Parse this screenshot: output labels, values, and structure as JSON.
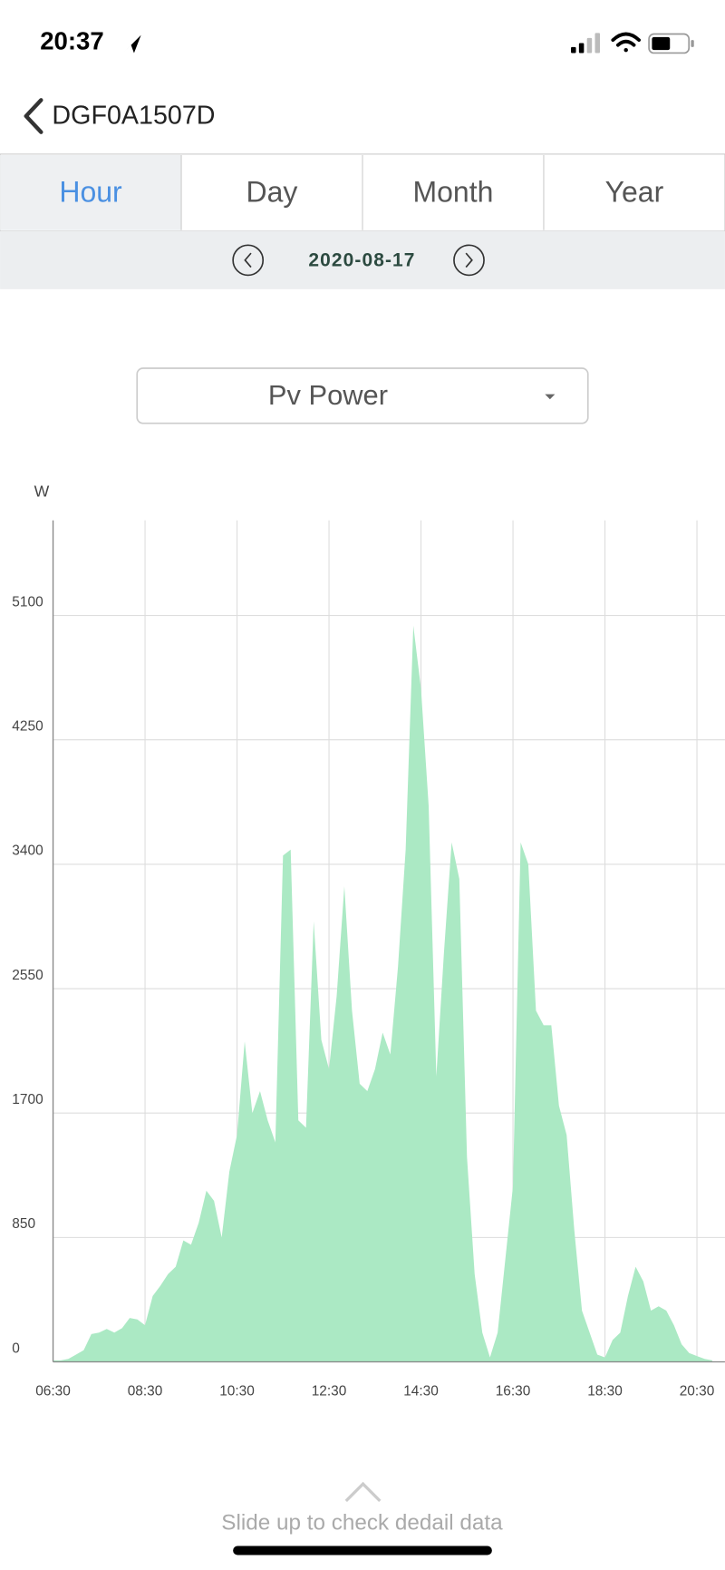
{
  "status_bar": {
    "time": "20:37"
  },
  "header": {
    "title": "DGF0A1507D"
  },
  "tabs": [
    "Hour",
    "Day",
    "Month",
    "Year"
  ],
  "date": "2020-08-17",
  "dropdown": "Pv Power",
  "footer": "Slide up to check dedail data",
  "chart_data": {
    "type": "area",
    "y_label": "W",
    "color": "#abe9c4",
    "x": [
      "06:30",
      "06:40",
      "06:50",
      "07:00",
      "07:10",
      "07:20",
      "07:30",
      "07:40",
      "07:50",
      "08:00",
      "08:10",
      "08:20",
      "08:30",
      "08:40",
      "08:50",
      "09:00",
      "09:10",
      "09:20",
      "09:30",
      "09:40",
      "09:50",
      "10:00",
      "10:10",
      "10:20",
      "10:30",
      "10:40",
      "10:50",
      "11:00",
      "11:10",
      "11:20",
      "11:30",
      "11:40",
      "11:50",
      "12:00",
      "12:10",
      "12:20",
      "12:30",
      "12:40",
      "12:50",
      "13:00",
      "13:10",
      "13:20",
      "13:30",
      "13:40",
      "13:50",
      "14:00",
      "14:10",
      "14:20",
      "14:30",
      "14:40",
      "14:50",
      "15:00",
      "15:10",
      "15:20",
      "15:30",
      "15:40",
      "15:50",
      "16:00",
      "16:10",
      "16:20",
      "16:30",
      "16:40",
      "16:50",
      "17:00",
      "17:10",
      "17:20",
      "17:30",
      "17:40",
      "17:50",
      "18:00",
      "18:10",
      "18:20",
      "18:30",
      "18:40",
      "18:50",
      "19:00",
      "19:10",
      "19:20",
      "19:30",
      "19:40",
      "19:50",
      "20:00",
      "20:10",
      "20:20",
      "20:30",
      "20:40",
      "20:50"
    ],
    "series": [
      {
        "name": "Pv Power",
        "color": "#abe9c4",
        "values": [
          10,
          10,
          20,
          50,
          80,
          190,
          200,
          225,
          200,
          230,
          300,
          290,
          250,
          450,
          520,
          600,
          650,
          830,
          800,
          950,
          1170,
          1100,
          850,
          1300,
          1550,
          2190,
          1700,
          1850,
          1650,
          1500,
          3460,
          3500,
          1650,
          1600,
          3010,
          2200,
          2000,
          2500,
          3250,
          2400,
          1900,
          1850,
          2000,
          2250,
          2100,
          2700,
          3500,
          5030,
          4600,
          3800,
          1950,
          2800,
          3550,
          3300,
          1400,
          600,
          200,
          30,
          200,
          700,
          1200,
          3550,
          3400,
          2400,
          2300,
          2300,
          1750,
          1550,
          900,
          350,
          200,
          50,
          30,
          150,
          200,
          450,
          650,
          550,
          350,
          380,
          350,
          250,
          120,
          60,
          40,
          20,
          10
        ]
      }
    ],
    "xlim": [
      "06:30",
      "21:00"
    ],
    "xticks": [
      "06:30",
      "08:30",
      "10:30",
      "12:30",
      "14:30",
      "16:30",
      "18:30",
      "20:30"
    ],
    "ylim": [
      0,
      5750
    ],
    "yticks": [
      0,
      850,
      1700,
      2550,
      3400,
      4250,
      5100
    ],
    "grid": true
  }
}
